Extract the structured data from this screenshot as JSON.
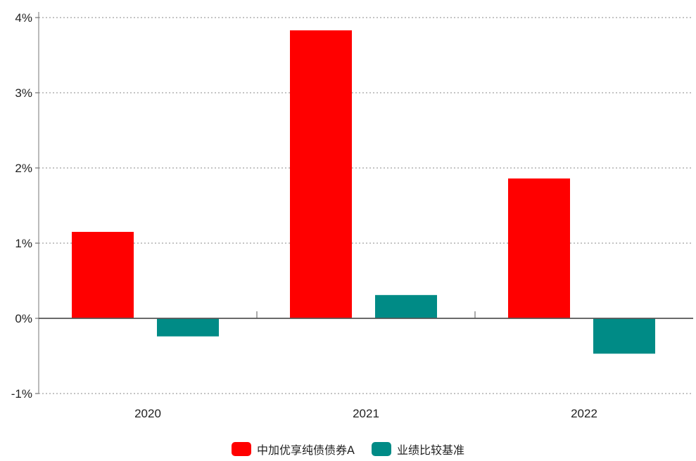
{
  "chart_data": {
    "type": "bar",
    "categories": [
      "2020",
      "2021",
      "2022"
    ],
    "series": [
      {
        "name": "中加优享纯债债券A",
        "color": "#ff0000",
        "values": [
          1.15,
          3.83,
          1.86
        ]
      },
      {
        "name": "业绩比较基准",
        "color": "#008b86",
        "values": [
          -0.24,
          0.31,
          -0.47
        ]
      }
    ],
    "ylim": [
      -1,
      4
    ],
    "yticks": [
      4,
      3,
      2,
      1,
      0,
      -1
    ],
    "ytick_labels": [
      "4%",
      "3%",
      "2%",
      "1%",
      "0%",
      "-1%"
    ],
    "grid": true,
    "legend_position": "bottom-center",
    "title": "",
    "xlabel": "",
    "ylabel": ""
  }
}
